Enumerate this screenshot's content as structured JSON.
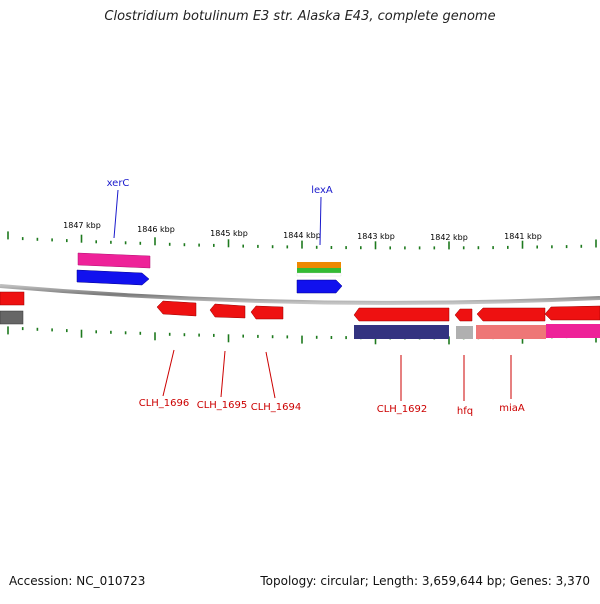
{
  "title": "Clostridium botulinum E3 str. Alaska E43, complete genome",
  "footer": {
    "accession": "Accession: NC_010723",
    "stats": "Topology: circular; Length: 3,659,644 bp; Genes: 3,370"
  },
  "colors": {
    "backbone": "#8a8a8a",
    "tick": "#1e7a1e",
    "forward_label": "#1a1acc",
    "reverse_label": "#cc0000",
    "gene_red": "#ee1111",
    "gene_blue": "#1111ee",
    "gene_pink": "#ee2299",
    "gene_orange": "#ee8800",
    "gene_green": "#33bb33",
    "gene_navy": "#333380",
    "gene_grey": "#b0b0b0",
    "gene_salmon": "#ee7777",
    "gene_darkgrey": "#666666"
  },
  "scale_labels": [
    "1847 kbp",
    "1846 kbp",
    "1845 kbp",
    "1844 kbp",
    "1843 kbp",
    "1842 kbp",
    "1841 kbp"
  ],
  "forward_genes": [
    "xerC",
    "lexA"
  ],
  "reverse_genes": [
    "CLH_1696",
    "CLH_1695",
    "CLH_1694",
    "CLH_1692",
    "hfq",
    "miaA"
  ]
}
